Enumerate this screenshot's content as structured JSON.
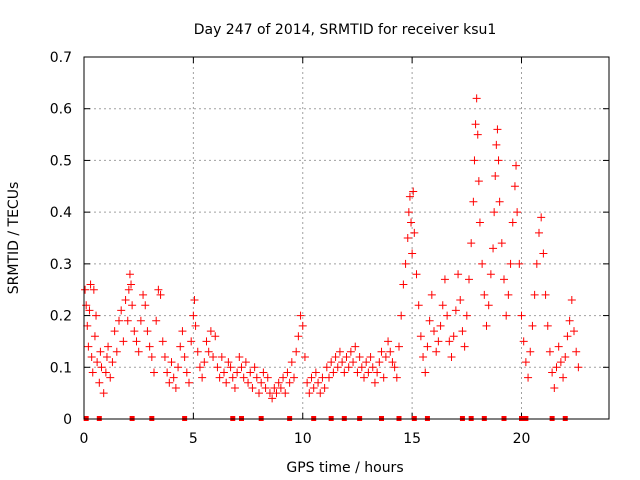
{
  "chart_data": {
    "type": "scatter",
    "title": "Day 247 of 2014, SRMTID for receiver ksu1",
    "xlabel": "GPS time / hours",
    "ylabel": "SRMTID / TECUs",
    "xlim": [
      0,
      24
    ],
    "ylim": [
      0,
      0.7
    ],
    "xticks": [
      0,
      5,
      10,
      15,
      20
    ],
    "xtick_labels": [
      "0",
      "5",
      "10",
      "15",
      "20"
    ],
    "yticks": [
      0,
      0.1,
      0.2,
      0.3,
      0.4,
      0.5,
      0.6,
      0.7
    ],
    "ytick_labels": [
      "0",
      "0.1",
      "0.2",
      "0.3",
      "0.4",
      "0.5",
      "0.6",
      "0.7"
    ],
    "grid": true,
    "marker": "plus",
    "color": "#ff0000",
    "series": [
      {
        "name": "SRMTID",
        "points": [
          [
            0.05,
            0.25
          ],
          [
            0.1,
            0.22
          ],
          [
            0.15,
            0.18
          ],
          [
            0.2,
            0.14
          ],
          [
            0.25,
            0.21
          ],
          [
            0.3,
            0.26
          ],
          [
            0.35,
            0.12
          ],
          [
            0.4,
            0.09
          ],
          [
            0.45,
            0.25
          ],
          [
            0.5,
            0.16
          ],
          [
            0.55,
            0.2
          ],
          [
            0.6,
            0.11
          ],
          [
            0.7,
            0.07
          ],
          [
            0.75,
            0.13
          ],
          [
            0.8,
            0.1
          ],
          [
            0.9,
            0.05
          ],
          [
            1.0,
            0.09
          ],
          [
            1.05,
            0.12
          ],
          [
            1.1,
            0.14
          ],
          [
            1.2,
            0.08
          ],
          [
            1.3,
            0.11
          ],
          [
            1.4,
            0.17
          ],
          [
            1.5,
            0.13
          ],
          [
            1.6,
            0.19
          ],
          [
            1.7,
            0.21
          ],
          [
            1.8,
            0.15
          ],
          [
            1.9,
            0.23
          ],
          [
            2.0,
            0.19
          ],
          [
            2.05,
            0.25
          ],
          [
            2.1,
            0.28
          ],
          [
            2.15,
            0.26
          ],
          [
            2.2,
            0.22
          ],
          [
            2.3,
            0.17
          ],
          [
            2.4,
            0.15
          ],
          [
            2.5,
            0.13
          ],
          [
            2.6,
            0.19
          ],
          [
            2.7,
            0.24
          ],
          [
            2.8,
            0.22
          ],
          [
            2.9,
            0.17
          ],
          [
            3.0,
            0.14
          ],
          [
            3.1,
            0.12
          ],
          [
            3.2,
            0.09
          ],
          [
            3.3,
            0.19
          ],
          [
            3.4,
            0.25
          ],
          [
            3.5,
            0.24
          ],
          [
            3.6,
            0.15
          ],
          [
            3.7,
            0.12
          ],
          [
            3.8,
            0.09
          ],
          [
            3.9,
            0.07
          ],
          [
            4.0,
            0.11
          ],
          [
            4.1,
            0.08
          ],
          [
            4.2,
            0.06
          ],
          [
            4.3,
            0.1
          ],
          [
            4.4,
            0.14
          ],
          [
            4.5,
            0.17
          ],
          [
            4.6,
            0.12
          ],
          [
            4.7,
            0.09
          ],
          [
            4.8,
            0.07
          ],
          [
            4.9,
            0.15
          ],
          [
            5.0,
            0.2
          ],
          [
            5.05,
            0.23
          ],
          [
            5.1,
            0.18
          ],
          [
            5.2,
            0.13
          ],
          [
            5.3,
            0.1
          ],
          [
            5.4,
            0.08
          ],
          [
            5.5,
            0.11
          ],
          [
            5.6,
            0.15
          ],
          [
            5.7,
            0.13
          ],
          [
            5.8,
            0.17
          ],
          [
            5.9,
            0.12
          ],
          [
            6.0,
            0.16
          ],
          [
            6.1,
            0.1
          ],
          [
            6.2,
            0.08
          ],
          [
            6.3,
            0.12
          ],
          [
            6.4,
            0.09
          ],
          [
            6.5,
            0.07
          ],
          [
            6.6,
            0.11
          ],
          [
            6.7,
            0.1
          ],
          [
            6.8,
            0.08
          ],
          [
            6.9,
            0.06
          ],
          [
            7.0,
            0.09
          ],
          [
            7.1,
            0.12
          ],
          [
            7.2,
            0.1
          ],
          [
            7.3,
            0.08
          ],
          [
            7.4,
            0.11
          ],
          [
            7.5,
            0.07
          ],
          [
            7.6,
            0.09
          ],
          [
            7.7,
            0.06
          ],
          [
            7.8,
            0.1
          ],
          [
            7.9,
            0.08
          ],
          [
            8.0,
            0.05
          ],
          [
            8.1,
            0.07
          ],
          [
            8.2,
            0.09
          ],
          [
            8.3,
            0.06
          ],
          [
            8.4,
            0.08
          ],
          [
            8.5,
            0.05
          ],
          [
            8.6,
            0.04
          ],
          [
            8.7,
            0.06
          ],
          [
            8.8,
            0.05
          ],
          [
            8.9,
            0.07
          ],
          [
            9.0,
            0.06
          ],
          [
            9.1,
            0.08
          ],
          [
            9.2,
            0.05
          ],
          [
            9.3,
            0.09
          ],
          [
            9.4,
            0.07
          ],
          [
            9.5,
            0.11
          ],
          [
            9.6,
            0.08
          ],
          [
            9.7,
            0.13
          ],
          [
            9.8,
            0.16
          ],
          [
            9.9,
            0.2
          ],
          [
            10.0,
            0.18
          ],
          [
            10.1,
            0.12
          ],
          [
            10.2,
            0.07
          ],
          [
            10.3,
            0.05
          ],
          [
            10.4,
            0.08
          ],
          [
            10.5,
            0.06
          ],
          [
            10.6,
            0.09
          ],
          [
            10.7,
            0.07
          ],
          [
            10.8,
            0.05
          ],
          [
            10.9,
            0.08
          ],
          [
            11.0,
            0.06
          ],
          [
            11.1,
            0.1
          ],
          [
            11.2,
            0.08
          ],
          [
            11.3,
            0.11
          ],
          [
            11.4,
            0.09
          ],
          [
            11.5,
            0.12
          ],
          [
            11.6,
            0.1
          ],
          [
            11.7,
            0.13
          ],
          [
            11.8,
            0.11
          ],
          [
            11.9,
            0.09
          ],
          [
            12.0,
            0.12
          ],
          [
            12.1,
            0.1
          ],
          [
            12.2,
            0.13
          ],
          [
            12.3,
            0.11
          ],
          [
            12.4,
            0.14
          ],
          [
            12.5,
            0.09
          ],
          [
            12.6,
            0.12
          ],
          [
            12.7,
            0.1
          ],
          [
            12.8,
            0.08
          ],
          [
            12.9,
            0.11
          ],
          [
            13.0,
            0.09
          ],
          [
            13.1,
            0.12
          ],
          [
            13.2,
            0.1
          ],
          [
            13.3,
            0.07
          ],
          [
            13.4,
            0.09
          ],
          [
            13.5,
            0.11
          ],
          [
            13.6,
            0.13
          ],
          [
            13.7,
            0.08
          ],
          [
            13.8,
            0.12
          ],
          [
            13.9,
            0.15
          ],
          [
            14.0,
            0.13
          ],
          [
            14.1,
            0.11
          ],
          [
            14.2,
            0.1
          ],
          [
            14.3,
            0.08
          ],
          [
            14.4,
            0.14
          ],
          [
            14.5,
            0.2
          ],
          [
            14.6,
            0.26
          ],
          [
            14.7,
            0.3
          ],
          [
            14.8,
            0.35
          ],
          [
            14.85,
            0.4
          ],
          [
            14.9,
            0.43
          ],
          [
            14.95,
            0.38
          ],
          [
            15.0,
            0.32
          ],
          [
            15.05,
            0.44
          ],
          [
            15.1,
            0.36
          ],
          [
            15.2,
            0.28
          ],
          [
            15.3,
            0.22
          ],
          [
            15.4,
            0.16
          ],
          [
            15.5,
            0.12
          ],
          [
            15.6,
            0.09
          ],
          [
            15.7,
            0.14
          ],
          [
            15.8,
            0.19
          ],
          [
            15.9,
            0.24
          ],
          [
            16.0,
            0.17
          ],
          [
            16.1,
            0.13
          ],
          [
            16.2,
            0.15
          ],
          [
            16.3,
            0.18
          ],
          [
            16.4,
            0.22
          ],
          [
            16.5,
            0.27
          ],
          [
            16.6,
            0.2
          ],
          [
            16.7,
            0.15
          ],
          [
            16.8,
            0.12
          ],
          [
            16.9,
            0.16
          ],
          [
            17.0,
            0.21
          ],
          [
            17.1,
            0.28
          ],
          [
            17.2,
            0.23
          ],
          [
            17.3,
            0.17
          ],
          [
            17.4,
            0.14
          ],
          [
            17.5,
            0.2
          ],
          [
            17.6,
            0.27
          ],
          [
            17.7,
            0.34
          ],
          [
            17.8,
            0.42
          ],
          [
            17.85,
            0.5
          ],
          [
            17.9,
            0.57
          ],
          [
            17.95,
            0.62
          ],
          [
            18.0,
            0.55
          ],
          [
            18.05,
            0.46
          ],
          [
            18.1,
            0.38
          ],
          [
            18.2,
            0.3
          ],
          [
            18.3,
            0.24
          ],
          [
            18.4,
            0.18
          ],
          [
            18.5,
            0.22
          ],
          [
            18.6,
            0.28
          ],
          [
            18.7,
            0.33
          ],
          [
            18.75,
            0.4
          ],
          [
            18.8,
            0.47
          ],
          [
            18.85,
            0.53
          ],
          [
            18.9,
            0.56
          ],
          [
            18.95,
            0.5
          ],
          [
            19.0,
            0.42
          ],
          [
            19.1,
            0.34
          ],
          [
            19.2,
            0.27
          ],
          [
            19.3,
            0.2
          ],
          [
            19.4,
            0.24
          ],
          [
            19.5,
            0.3
          ],
          [
            19.6,
            0.38
          ],
          [
            19.7,
            0.45
          ],
          [
            19.75,
            0.49
          ],
          [
            19.8,
            0.4
          ],
          [
            19.9,
            0.3
          ],
          [
            20.0,
            0.2
          ],
          [
            20.1,
            0.15
          ],
          [
            20.2,
            0.11
          ],
          [
            20.3,
            0.08
          ],
          [
            20.4,
            0.13
          ],
          [
            20.5,
            0.18
          ],
          [
            20.6,
            0.24
          ],
          [
            20.7,
            0.3
          ],
          [
            20.8,
            0.36
          ],
          [
            20.9,
            0.39
          ],
          [
            21.0,
            0.32
          ],
          [
            21.1,
            0.24
          ],
          [
            21.2,
            0.18
          ],
          [
            21.3,
            0.13
          ],
          [
            21.4,
            0.09
          ],
          [
            21.5,
            0.06
          ],
          [
            21.6,
            0.1
          ],
          [
            21.7,
            0.14
          ],
          [
            21.8,
            0.11
          ],
          [
            21.9,
            0.08
          ],
          [
            22.0,
            0.12
          ],
          [
            22.1,
            0.16
          ],
          [
            22.2,
            0.19
          ],
          [
            22.3,
            0.23
          ],
          [
            22.4,
            0.17
          ],
          [
            22.5,
            0.13
          ],
          [
            22.6,
            0.1
          ]
        ],
        "zero_times": [
          0.1,
          0.7,
          2.2,
          3.1,
          4.6,
          6.8,
          7.2,
          8.1,
          9.4,
          10.5,
          11.3,
          11.9,
          12.6,
          13.6,
          14.4,
          15.1,
          15.7,
          17.3,
          17.7,
          18.3,
          19.2,
          20.0,
          20.2,
          21.4,
          22.0
        ]
      }
    ]
  }
}
